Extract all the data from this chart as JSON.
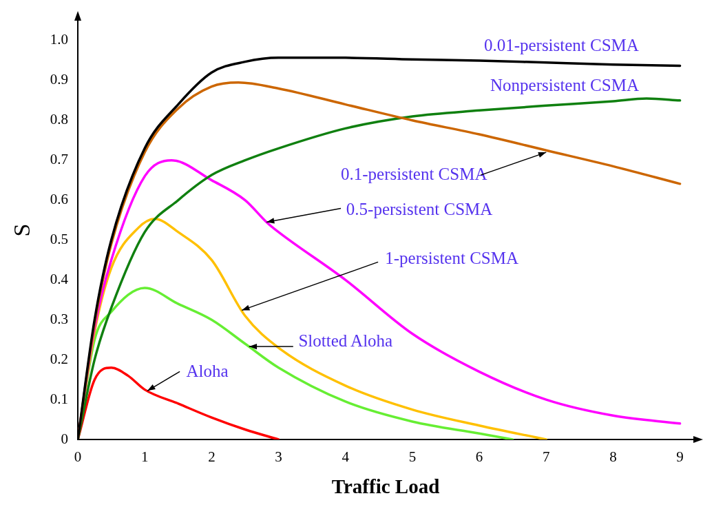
{
  "chart_data": {
    "type": "line",
    "xlabel": "Traffic Load",
    "ylabel": "S",
    "xlim": [
      0,
      9.2
    ],
    "ylim": [
      0,
      1.05
    ],
    "xticks": [
      0,
      1,
      2,
      3,
      4,
      5,
      6,
      7,
      8,
      9
    ],
    "yticks": [
      0,
      {
        "value": 0.1,
        "label": "0.1"
      },
      {
        "value": 0.2,
        "label": "0.2"
      },
      {
        "value": 0.3,
        "label": "0.3"
      },
      {
        "value": 0.4,
        "label": "0.4"
      },
      {
        "value": 0.5,
        "label": "0.5"
      },
      {
        "value": 0.6,
        "label": "0.6"
      },
      {
        "value": 0.7,
        "label": "0.7"
      },
      {
        "value": 0.8,
        "label": "0.8"
      },
      {
        "value": 0.9,
        "label": "0.9"
      },
      {
        "value": 1,
        "label": "1.0"
      }
    ],
    "grid": false,
    "legend": false,
    "marker": "none",
    "line_style": "solid",
    "series": [
      {
        "color": "#000000",
        "x": [
          0,
          0.25,
          0.5,
          1,
          1.5,
          2,
          2.5,
          3,
          4,
          5,
          6,
          7,
          8,
          9
        ],
        "values": [
          0,
          0.3,
          0.5,
          0.73,
          0.84,
          0.92,
          0.947,
          0.957,
          0.957,
          0.953,
          0.95,
          0.945,
          0.94,
          0.937
        ]
      },
      {
        "color": "#cc6600",
        "x": [
          0,
          0.25,
          0.5,
          1,
          1.5,
          2,
          2.4,
          3,
          4,
          5,
          6,
          7,
          8,
          9
        ],
        "values": [
          0,
          0.29,
          0.49,
          0.72,
          0.83,
          0.885,
          0.895,
          0.88,
          0.84,
          0.8,
          0.765,
          0.725,
          0.685,
          0.641
        ]
      },
      {
        "color": "#108010",
        "x": [
          0,
          0.25,
          0.5,
          1,
          1.5,
          2,
          2.5,
          3,
          4,
          5,
          6,
          7,
          8,
          8.5,
          9
        ],
        "values": [
          0,
          0.2,
          0.33,
          0.52,
          0.6,
          0.663,
          0.7,
          0.73,
          0.78,
          0.81,
          0.825,
          0.837,
          0.848,
          0.855,
          0.85
        ]
      },
      {
        "color": "#ff00ff",
        "x": [
          0,
          0.25,
          0.5,
          1,
          1.4,
          2,
          2.5,
          2.82,
          3,
          4,
          5,
          6,
          7,
          8,
          9
        ],
        "values": [
          0,
          0.28,
          0.45,
          0.66,
          0.7,
          0.65,
          0.6,
          0.545,
          0.52,
          0.4,
          0.265,
          0.17,
          0.1,
          0.06,
          0.04
        ]
      },
      {
        "color": "#ffc000",
        "x": [
          0,
          0.25,
          0.5,
          0.9,
          1.15,
          1.5,
          2,
          2.5,
          3,
          4,
          5,
          6,
          7
        ],
        "values": [
          0,
          0.27,
          0.43,
          0.53,
          0.553,
          0.52,
          0.45,
          0.31,
          0.23,
          0.135,
          0.075,
          0.035,
          0
        ]
      },
      {
        "color": "#66ee33",
        "x": [
          0,
          0.25,
          0.5,
          1,
          1.5,
          2,
          2.5,
          3,
          4,
          5,
          6,
          6.5
        ],
        "values": [
          0,
          0.25,
          0.32,
          0.38,
          0.34,
          0.3,
          0.24,
          0.18,
          0.095,
          0.045,
          0.015,
          0
        ]
      },
      {
        "color": "#ff0000",
        "x": [
          0,
          0.25,
          0.5,
          0.75,
          1,
          1.5,
          2,
          2.5,
          3
        ],
        "values": [
          0,
          0.15,
          0.18,
          0.16,
          0.125,
          0.09,
          0.055,
          0.025,
          0
        ]
      }
    ],
    "annotations": [
      {
        "text": "0.01-persistent CSMA",
        "x": 8,
        "y": 0.94
      },
      {
        "text": "Nonpersistent CSMA",
        "x": 8.5,
        "y": 0.855
      },
      {
        "text": "0.1-persistent CSMA",
        "x": 7,
        "y": 0.72
      },
      {
        "text": "0.5-persistent CSMA",
        "x": 2.82,
        "y": 0.545
      },
      {
        "text": "1-persistent CSMA",
        "x": 2.45,
        "y": 0.324
      },
      {
        "text": "Slotted Aloha",
        "x": 2.56,
        "y": 0.233
      },
      {
        "text": "Aloha",
        "x": 1.04,
        "y": 0.122
      }
    ]
  }
}
